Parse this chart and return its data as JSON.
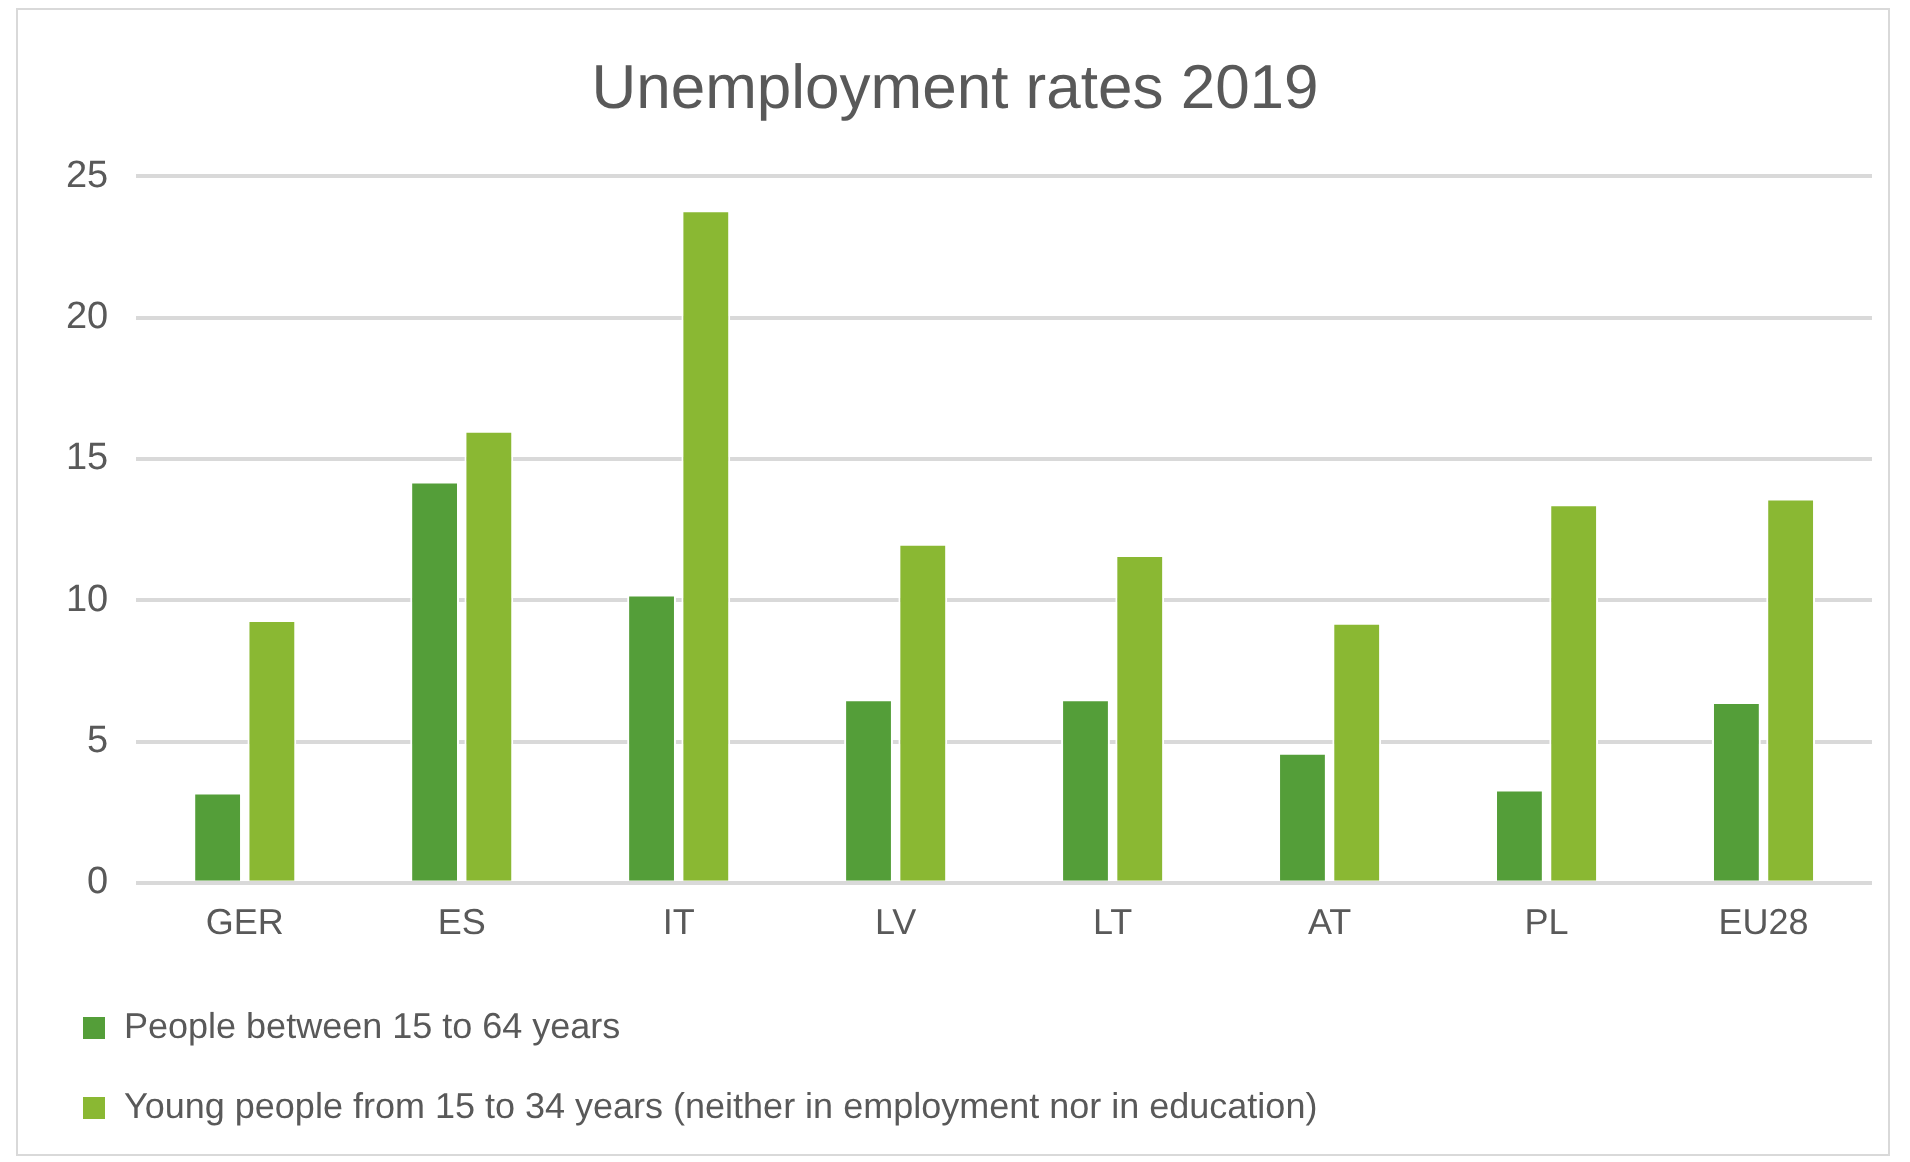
{
  "chart_data": {
    "type": "bar",
    "title": "Unemployment rates 2019",
    "categories": [
      "GER",
      "ES",
      "IT",
      "LV",
      "LT",
      "AT",
      "PL",
      "EU28"
    ],
    "series": [
      {
        "name": "People between 15 to 64 years",
        "color": "#549e39",
        "values": [
          3.2,
          14.2,
          10.2,
          6.5,
          6.5,
          4.6,
          3.3,
          6.4
        ]
      },
      {
        "name": "Young people from 15 to 34 years (neither in employment nor in education)",
        "color": "#8ab833",
        "values": [
          9.3,
          16.0,
          23.8,
          12.0,
          11.6,
          9.2,
          13.4,
          13.6
        ]
      }
    ],
    "ylim": [
      0,
      25
    ],
    "yticks": [
      0,
      5,
      10,
      15,
      20,
      25
    ],
    "grid": "y",
    "legend": "bottom"
  }
}
